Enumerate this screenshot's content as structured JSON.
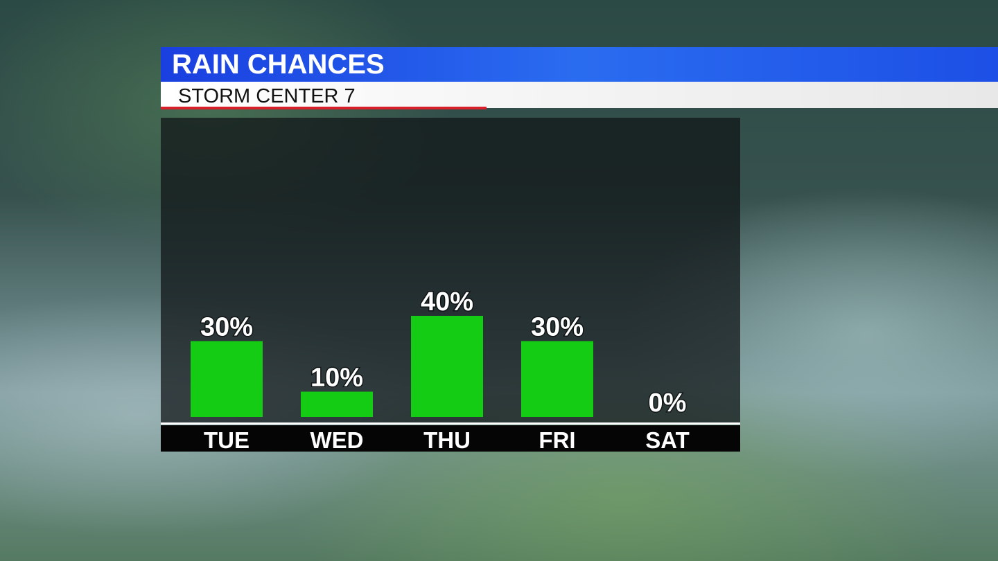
{
  "chart_data": {
    "type": "bar",
    "title": "RAIN CHANCES",
    "subtitle": "STORM CENTER 7",
    "categories": [
      "TUE",
      "WED",
      "THU",
      "FRI",
      "SAT"
    ],
    "values": [
      30,
      10,
      40,
      30,
      0
    ],
    "value_labels": [
      "30%",
      "10%",
      "40%",
      "30%",
      "0%"
    ],
    "color": "#14cc14"
  }
}
